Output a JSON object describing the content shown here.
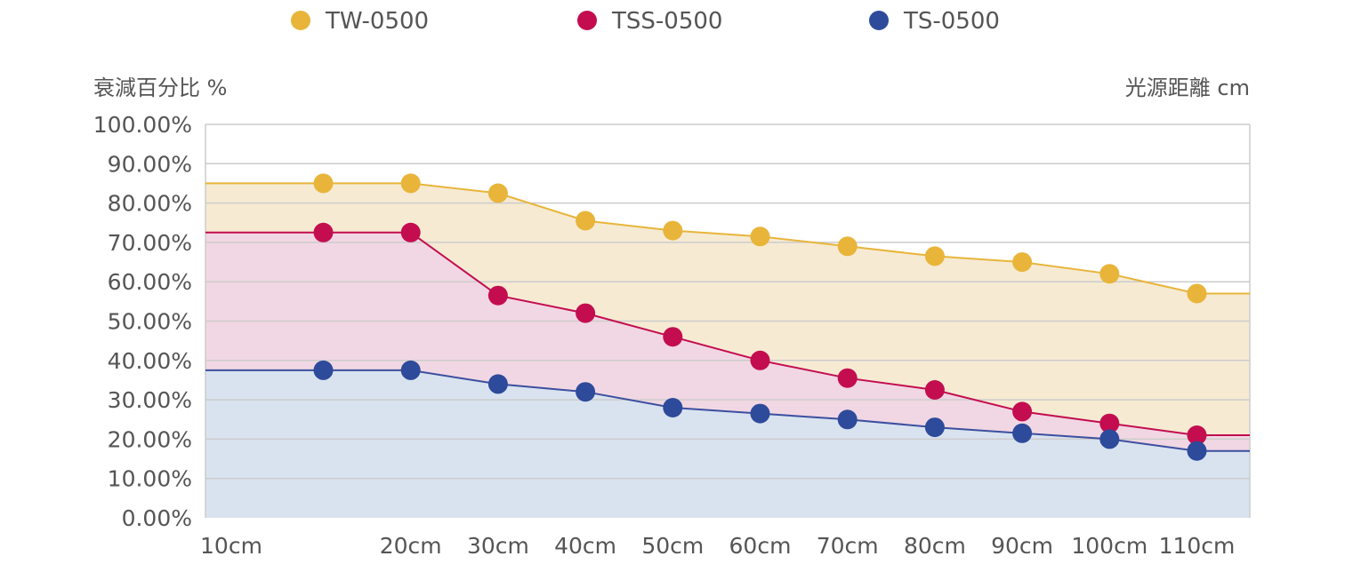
{
  "chart_data": {
    "type": "area",
    "ylabel": "衰減百分比 %",
    "xlabel": "光源距離 cm",
    "categories": [
      "10cm",
      "20cm",
      "30cm",
      "40cm",
      "50cm",
      "60cm",
      "70cm",
      "80cm",
      "90cm",
      "100cm",
      "110cm"
    ],
    "ylim": [
      0,
      100
    ],
    "yticks": [
      "0.00%",
      "10.00%",
      "20.00%",
      "30.00%",
      "40.00%",
      "50.00%",
      "60.00%",
      "70.00%",
      "80.00%",
      "90.00%",
      "100.00%"
    ],
    "grid": true,
    "legend_position": "top",
    "series": [
      {
        "name": "TW-0500",
        "color": "#E8B53A",
        "line_color": "#E8B53A",
        "fill_color": "#F6EAD3",
        "values": [
          85,
          85,
          82.5,
          75.5,
          73,
          71.5,
          69,
          66.5,
          65,
          62,
          57
        ]
      },
      {
        "name": "TSS-0500",
        "color": "#C30D4F",
        "line_color": "#C30D4F",
        "fill_color": "#F1D7E3",
        "values": [
          72.5,
          72.5,
          56.5,
          52,
          46,
          40,
          35.5,
          32.5,
          27,
          24,
          21
        ]
      },
      {
        "name": "TS-0500",
        "color": "#2E4A9B",
        "line_color": "#3B4FA0",
        "fill_color": "#D9E3EF",
        "values": [
          37.5,
          37.5,
          34,
          32,
          28,
          26.5,
          25,
          23,
          21.5,
          20,
          17
        ]
      }
    ]
  }
}
